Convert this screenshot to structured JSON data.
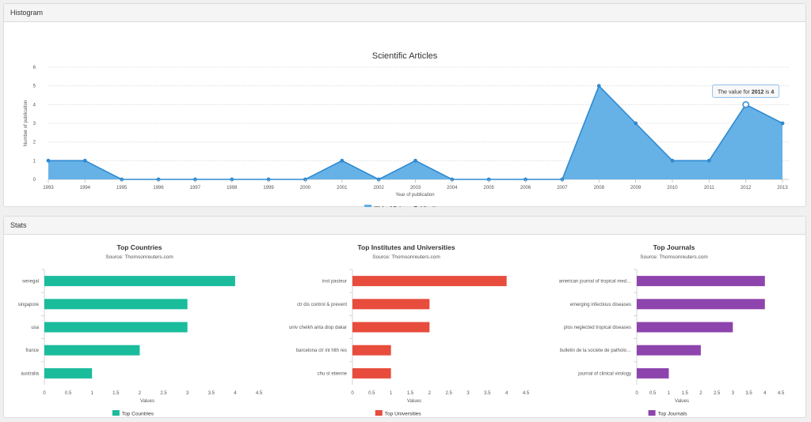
{
  "panels": {
    "histogram_title": "Histogram",
    "stats_title": "Stats"
  },
  "colors": {
    "area": "#5eaee6",
    "line": "#2f8ad1",
    "countries": "#1abc9c",
    "universities": "#e74c3c",
    "journals": "#8e44ad"
  },
  "chart_data": [
    {
      "type": "area",
      "title": "Scientific Articles",
      "xlabel": "Year of publication",
      "ylabel": "Number of publication",
      "x": [
        "1993",
        "1994",
        "1995",
        "1996",
        "1997",
        "1998",
        "1999",
        "2000",
        "2001",
        "2002",
        "2003",
        "2004",
        "2005",
        "2006",
        "2007",
        "2008",
        "2009",
        "2010",
        "2011",
        "2012",
        "2013"
      ],
      "series": [
        {
          "name": "Web of Science Publications",
          "values": [
            1,
            1,
            0,
            0,
            0,
            0,
            0,
            0,
            1,
            0,
            1,
            0,
            0,
            0,
            0,
            5,
            3,
            1,
            1,
            4,
            3
          ]
        }
      ],
      "ylim": [
        0,
        6
      ],
      "yticks": [
        "0",
        "1",
        "2",
        "3",
        "4",
        "5",
        "6"
      ],
      "grid": true,
      "legend": "bottom-center",
      "tooltip": {
        "prefix": "The value for ",
        "year": "2012",
        "mid": " is ",
        "value": "4"
      }
    },
    {
      "type": "bar",
      "orientation": "horizontal",
      "title": "Top Countries",
      "subtitle": "Source: Thomsonreuters.com",
      "xlabel": "Values",
      "categories": [
        "senegal",
        "singapore",
        "usa",
        "france",
        "australia"
      ],
      "series": [
        {
          "name": "Top Countries",
          "values": [
            4,
            3,
            3,
            2,
            1
          ]
        }
      ],
      "xlim": [
        0,
        4.5
      ],
      "xticks": [
        "0",
        "0.5",
        "1",
        "1.5",
        "2",
        "2.5",
        "3",
        "3.5",
        "4",
        "4.5"
      ],
      "legend": "bottom-center"
    },
    {
      "type": "bar",
      "orientation": "horizontal",
      "title": "Top Institutes and Universities",
      "subtitle": "Source: Thomsonreuters.com",
      "xlabel": "Values",
      "categories": [
        "inst pasteur",
        "ctr dis control & prevent",
        "univ cheikh anta diop dakar",
        "barcelona ctr int hlth res",
        "chu st etienne"
      ],
      "series": [
        {
          "name": "Top Universities",
          "values": [
            4,
            2,
            2,
            1,
            1
          ]
        }
      ],
      "xlim": [
        0,
        4.5
      ],
      "xticks": [
        "0",
        "0.5",
        "1",
        "1.5",
        "2",
        "2.5",
        "3",
        "3.5",
        "4",
        "4.5"
      ],
      "legend": "bottom-center"
    },
    {
      "type": "bar",
      "orientation": "horizontal",
      "title": "Top Journals",
      "subtitle": "Source: Thomsonreuters.com",
      "xlabel": "Values",
      "categories": [
        "american journal of tropical med…",
        "emerging infectious diseases",
        "plos neglected tropical diseases",
        "bulletin de la societe de patholo…",
        "journal of clinical virology"
      ],
      "series": [
        {
          "name": "Top Journals",
          "values": [
            4,
            4,
            3,
            2,
            1
          ]
        }
      ],
      "xlim": [
        0,
        4.5
      ],
      "xticks": [
        "0",
        "0.5",
        "1",
        "1.5",
        "2",
        "2.5",
        "3",
        "3.5",
        "4",
        "4.5"
      ],
      "legend": "bottom-center"
    }
  ]
}
